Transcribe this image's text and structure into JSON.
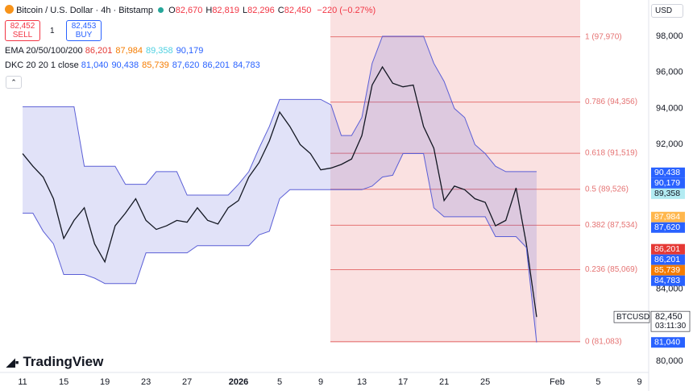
{
  "header": {
    "symbol": "Bitcoin / U.S. Dollar · 4h · Bitstamp",
    "ohlc": [
      {
        "k": "O",
        "v": "82,670"
      },
      {
        "k": "H",
        "v": "82,819"
      },
      {
        "k": "L",
        "v": "82,296"
      },
      {
        "k": "C",
        "v": "82,450"
      }
    ],
    "change": "−220 (−0.27%)",
    "sell": {
      "price": "82,452",
      "label": "SELL"
    },
    "spread": "1",
    "buy": {
      "price": "82,453",
      "label": "BUY"
    },
    "ema": {
      "name": "EMA 20/50/100/200",
      "values": [
        "86,201",
        "87,984",
        "89,358",
        "90,179"
      ]
    },
    "dkc": {
      "name": "DKC 20 20 1 close",
      "values": [
        "81,040",
        "90,438",
        "85,739",
        "87,620",
        "86,201",
        "84,783"
      ]
    },
    "currency": "USD",
    "brand": "TradingView"
  },
  "chart_data": {
    "type": "line",
    "x": [
      0,
      1,
      2,
      3,
      4,
      5,
      6,
      7,
      8,
      9,
      10,
      11,
      12,
      13,
      14,
      15,
      16,
      17,
      18,
      19,
      20,
      21,
      22,
      23,
      24,
      25,
      26,
      27,
      28,
      29,
      30,
      31,
      32,
      33,
      34,
      35,
      36,
      37,
      38,
      39,
      40,
      41,
      42,
      43,
      44,
      45,
      46,
      47,
      48,
      49,
      50
    ],
    "series": [
      {
        "name": "BTCUSD",
        "color": "#131722",
        "values": [
          91500,
          90800,
          90200,
          89000,
          86800,
          87800,
          88500,
          86500,
          85500,
          87500,
          88200,
          89000,
          87800,
          87300,
          87500,
          87800,
          87700,
          88500,
          87800,
          87600,
          88500,
          88900,
          90200,
          91000,
          92200,
          93800,
          93000,
          92000,
          91500,
          90600,
          90700,
          90900,
          91200,
          92500,
          95300,
          96300,
          95400,
          95200,
          95300,
          93000,
          91800,
          88900,
          89700,
          89500,
          89000,
          88800,
          87500,
          87800,
          89600,
          86500,
          82450
        ]
      },
      {
        "name": "DKC upper",
        "color": "#5b5fd6",
        "values": [
          94100,
          94100,
          94100,
          94100,
          94100,
          94100,
          90800,
          90800,
          90800,
          90800,
          89800,
          89800,
          89800,
          90500,
          90500,
          90500,
          89200,
          89200,
          89200,
          89200,
          89200,
          89800,
          90500,
          91800,
          93000,
          94500,
          94500,
          94500,
          94500,
          94500,
          94200,
          92500,
          92500,
          93500,
          96500,
          98000,
          98000,
          98000,
          98000,
          98000,
          96500,
          95500,
          94000,
          93500,
          92000,
          91500,
          90800,
          90500,
          90500,
          90500,
          90500
        ]
      },
      {
        "name": "DKC lower",
        "color": "#5b5fd6",
        "values": [
          88200,
          88200,
          87200,
          86500,
          84800,
          84800,
          84800,
          84600,
          84300,
          84300,
          84300,
          84300,
          86000,
          86000,
          86000,
          86000,
          86000,
          86400,
          86400,
          86400,
          86400,
          86400,
          86400,
          87000,
          87200,
          89000,
          89500,
          89500,
          89500,
          89500,
          89500,
          89500,
          89500,
          89500,
          89700,
          90200,
          90300,
          91500,
          91500,
          91500,
          88500,
          88000,
          88000,
          88000,
          88000,
          88000,
          86900,
          86900,
          86900,
          86300,
          81040
        ]
      }
    ],
    "fib": [
      {
        "value": 97970,
        "label": "1 (97,970)"
      },
      {
        "value": 94356,
        "label": "0.786 (94,356)"
      },
      {
        "value": 91519,
        "label": "0.618 (91,519)"
      },
      {
        "value": 89526,
        "label": "0.5 (89,526)"
      },
      {
        "value": 87534,
        "label": "0.382 (87,534)"
      },
      {
        "value": 85069,
        "label": "0.236 (85,069)"
      },
      {
        "value": 81083,
        "label": "0 (81,083)"
      }
    ],
    "price_tags": [
      {
        "value": 90438,
        "label": "90,438",
        "color": "#2962ff"
      },
      {
        "value": 90179,
        "label": "90,179",
        "color": "#2962ff"
      },
      {
        "value": 89358,
        "label": "89,358",
        "color": "#b2ebf2"
      },
      {
        "value": 87984,
        "label": "87,984",
        "color": "#ffb74d"
      },
      {
        "value": 87620,
        "label": "87,620",
        "color": "#2962ff"
      },
      {
        "value": 86201,
        "label": "86,201",
        "color": "#e53935"
      },
      {
        "value": 86201,
        "label": "86,201",
        "color": "#2962ff"
      },
      {
        "value": 85739,
        "label": "85,739",
        "color": "#f57c00"
      },
      {
        "value": 84783,
        "label": "84,783",
        "color": "#2962ff"
      },
      {
        "value": 82450,
        "label": "82,450",
        "color": "#ffffff",
        "name": "BTCUSD",
        "time": "03:11:30"
      },
      {
        "value": 81040,
        "label": "81,040",
        "color": "#2962ff"
      }
    ],
    "xlim": [
      -2.2,
      60.9
    ],
    "ylim": [
      79375,
      100010
    ],
    "xticks": [
      {
        "value": 0,
        "label": "11"
      },
      {
        "value": 4,
        "label": "15"
      },
      {
        "value": 8,
        "label": "19"
      },
      {
        "value": 12,
        "label": "23"
      },
      {
        "value": 16,
        "label": "27"
      },
      {
        "value": 21,
        "label": "2026"
      },
      {
        "value": 25,
        "label": "5"
      },
      {
        "value": 29,
        "label": "9"
      },
      {
        "value": 33,
        "label": "13"
      },
      {
        "value": 37,
        "label": "17"
      },
      {
        "value": 41,
        "label": "21"
      },
      {
        "value": 45,
        "label": "25"
      },
      {
        "value": 52,
        "label": "Feb"
      },
      {
        "value": 56,
        "label": "5"
      },
      {
        "value": 60,
        "label": "9"
      }
    ],
    "yticks": [
      {
        "value": 80000,
        "label": "80,000"
      },
      {
        "value": 84000,
        "label": "84,000"
      },
      {
        "value": 92000,
        "label": "92,000"
      },
      {
        "value": 94000,
        "label": "94,000"
      },
      {
        "value": 96000,
        "label": "96,000"
      },
      {
        "value": 98000,
        "label": "98,000"
      }
    ]
  }
}
